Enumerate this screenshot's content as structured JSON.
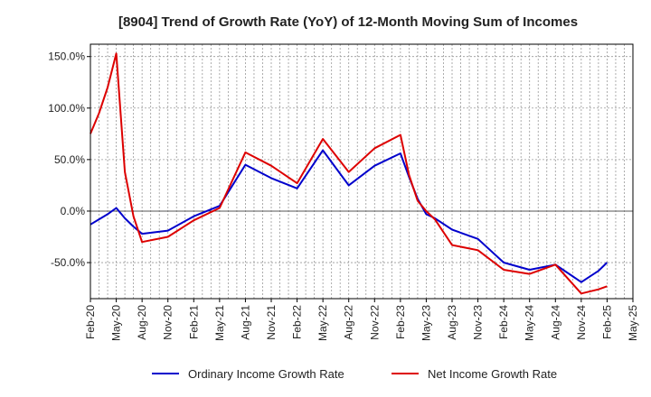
{
  "chart_data": {
    "type": "line",
    "title": "[8904]  Trend of Growth Rate (YoY) of 12-Month Moving Sum of Incomes",
    "xlabel": "",
    "ylabel": "",
    "x_tick_labels": [
      "Feb-20",
      "May-20",
      "Aug-20",
      "Nov-20",
      "Feb-21",
      "May-21",
      "Aug-21",
      "Nov-21",
      "Feb-22",
      "May-22",
      "Aug-22",
      "Nov-22",
      "Feb-23",
      "May-23",
      "Aug-23",
      "Nov-23",
      "Feb-24",
      "May-24",
      "Aug-24",
      "Nov-24",
      "Feb-25",
      "May-25"
    ],
    "y_tick_labels": [
      "150.0%",
      "100.0%",
      "50.0%",
      "0.0%",
      "-50.0%"
    ],
    "y_ticks": [
      150,
      100,
      50,
      0,
      -50
    ],
    "ylim": [
      -85,
      162
    ],
    "x_range_months": [
      0,
      63
    ],
    "grid": true,
    "legend_position": "bottom",
    "series": [
      {
        "name": "Ordinary Income Growth Rate",
        "color": "#0000cc",
        "points": [
          [
            0,
            -13
          ],
          [
            1,
            -8
          ],
          [
            2,
            -3
          ],
          [
            3,
            3
          ],
          [
            4,
            -7
          ],
          [
            5,
            -15
          ],
          [
            6,
            -22
          ],
          [
            9,
            -19
          ],
          [
            12,
            -5
          ],
          [
            15,
            5
          ],
          [
            18,
            45
          ],
          [
            21,
            32
          ],
          [
            24,
            22
          ],
          [
            27,
            59
          ],
          [
            30,
            25
          ],
          [
            33,
            44
          ],
          [
            36,
            56
          ],
          [
            37,
            33
          ],
          [
            38,
            12
          ],
          [
            39,
            -3
          ],
          [
            40,
            -7
          ],
          [
            42,
            -18
          ],
          [
            45,
            -27
          ],
          [
            48,
            -50
          ],
          [
            51,
            -57
          ],
          [
            54,
            -52
          ],
          [
            57,
            -69
          ],
          [
            59,
            -58
          ],
          [
            60,
            -50
          ]
        ]
      },
      {
        "name": "Net Income Growth Rate",
        "color": "#dd0000",
        "points": [
          [
            0,
            75
          ],
          [
            1,
            95
          ],
          [
            2,
            120
          ],
          [
            3,
            153
          ],
          [
            4,
            38
          ],
          [
            5,
            -5
          ],
          [
            6,
            -30
          ],
          [
            9,
            -25
          ],
          [
            12,
            -9
          ],
          [
            15,
            3
          ],
          [
            18,
            57
          ],
          [
            21,
            44
          ],
          [
            24,
            27
          ],
          [
            27,
            70
          ],
          [
            30,
            38
          ],
          [
            33,
            61
          ],
          [
            36,
            74
          ],
          [
            37,
            35
          ],
          [
            38,
            10
          ],
          [
            39,
            0
          ],
          [
            40,
            -8
          ],
          [
            42,
            -33
          ],
          [
            45,
            -38
          ],
          [
            48,
            -57
          ],
          [
            51,
            -61
          ],
          [
            54,
            -52
          ],
          [
            57,
            -80
          ],
          [
            59,
            -76
          ],
          [
            60,
            -73
          ]
        ]
      }
    ]
  }
}
